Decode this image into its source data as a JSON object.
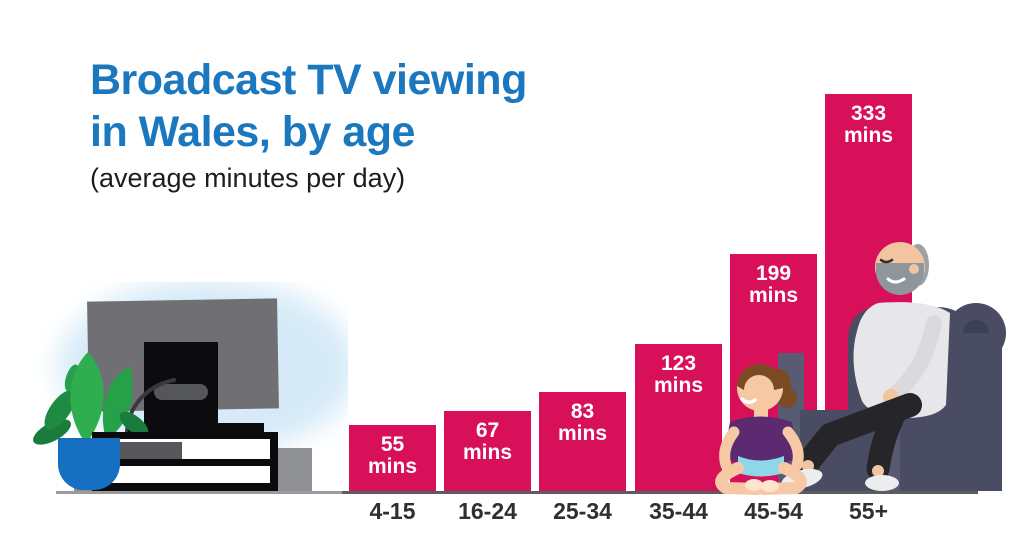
{
  "header": {
    "title_line1": "Broadcast TV viewing",
    "title_line2": "in Wales, by age",
    "subtitle": "(average minutes per day)"
  },
  "chart_data": {
    "type": "bar",
    "title": "Broadcast TV viewing in Wales, by age",
    "subtitle": "(average minutes per day)",
    "categories": [
      "4-15",
      "16-24",
      "25-34",
      "35-44",
      "45-54",
      "55+"
    ],
    "values": [
      55,
      67,
      83,
      123,
      199,
      333
    ],
    "unit": "mins",
    "bar_labels": [
      "55 mins",
      "67 mins",
      "83 mins",
      "123 mins",
      "199 mins",
      "333 mins"
    ],
    "xlabel": "",
    "ylabel": "",
    "ylim": [
      0,
      340
    ],
    "grid": false,
    "legend": false,
    "bar_color": "#d8105a",
    "bar_label_color": "#ffffff",
    "axis_label_color": "#2f2f31"
  },
  "illustrations": {
    "left": "tv-on-media-unit-with-plant",
    "right_front": "child-sitting-cross-legged",
    "right": "older-man-in-armchair"
  },
  "colors": {
    "title_blue": "#1b78bf",
    "subtitle_black": "#1d1d1f",
    "bar_crimson": "#d8105a",
    "floor_gray": "#77787c",
    "armchair": "#4a4c63",
    "tv_glow": "#cfe7f7",
    "plant_green": "#2fae4f",
    "pot_blue": "#176fc1",
    "background": "#ffffff"
  }
}
